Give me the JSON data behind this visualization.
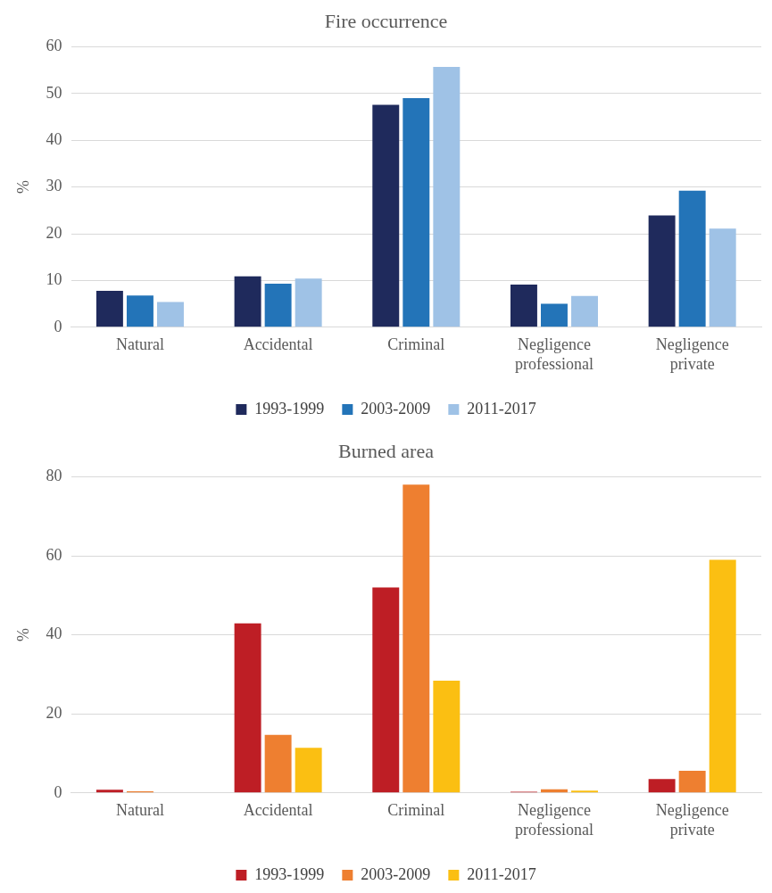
{
  "chart_data": [
    {
      "type": "bar",
      "title": "Fire occurrence",
      "ylabel": "%",
      "categories": [
        "Natural",
        "Accidental",
        "Criminal",
        "Negligence professional",
        "Negligence private"
      ],
      "series": [
        {
          "name": "1993-1999",
          "color": "#1f2a5c",
          "values": [
            7.8,
            10.9,
            47.6,
            9.1,
            23.9
          ]
        },
        {
          "name": "2003-2009",
          "color": "#2374b8",
          "values": [
            6.8,
            9.3,
            49.0,
            5.0,
            29.2
          ]
        },
        {
          "name": "2011-2017",
          "color": "#9fc2e6",
          "values": [
            5.4,
            10.4,
            55.7,
            6.7,
            21.1
          ]
        }
      ],
      "ylim": [
        0,
        60
      ],
      "yticks": [
        0,
        10,
        20,
        30,
        40,
        50,
        60
      ],
      "grid": "y",
      "legend": "bottom"
    },
    {
      "type": "bar",
      "title": "Burned area",
      "ylabel": "%",
      "categories": [
        "Natural",
        "Accidental",
        "Criminal",
        "Negligence professional",
        "Negligence private"
      ],
      "series": [
        {
          "name": "1993-1999",
          "color": "#be1e25",
          "values": [
            0.8,
            42.9,
            52.0,
            0.3,
            3.5
          ]
        },
        {
          "name": "2003-2009",
          "color": "#ee7f30",
          "values": [
            0.4,
            14.7,
            78.0,
            0.9,
            5.6
          ]
        },
        {
          "name": "2011-2017",
          "color": "#fbbf12",
          "values": [
            0,
            11.4,
            28.4,
            0.6,
            59.0
          ]
        }
      ],
      "ylim": [
        0,
        80
      ],
      "yticks": [
        0,
        20,
        40,
        60,
        80
      ],
      "grid": "y",
      "legend": "bottom"
    }
  ]
}
